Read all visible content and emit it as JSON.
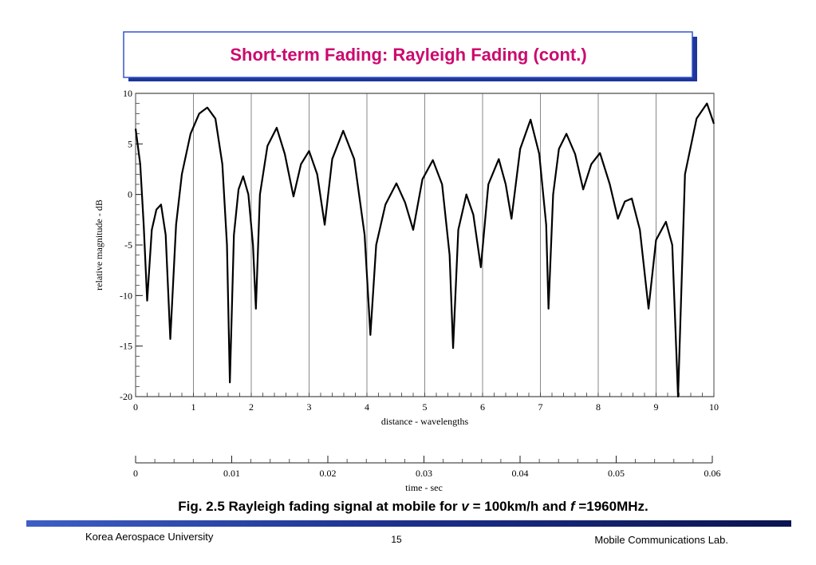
{
  "slide_title": "Short-term Fading: Rayleigh Fading (cont.)",
  "caption": [
    "Fig. 2.5 Rayleigh fading signal at mobile for ",
    "v",
    " = 100km/h and ",
    "f",
    " =1960MHz."
  ],
  "footer": {
    "left": "Korea Aerospace University",
    "page": "15",
    "right": "Mobile Communications Lab."
  },
  "chart_data": {
    "type": "line",
    "color": "#000000",
    "xlabel": "distance - wavelengths",
    "ylabel": "relative magnitude - dB",
    "x2label": "time - sec",
    "xlim": [
      0,
      10
    ],
    "ylim": [
      -20,
      10
    ],
    "xticks": [
      0,
      1,
      2,
      3,
      4,
      5,
      6,
      7,
      8,
      9,
      10
    ],
    "yticks": [
      -20,
      -15,
      -10,
      -5,
      0,
      5,
      10
    ],
    "x2lim": [
      0,
      0.06
    ],
    "x2ticks": [
      0,
      0.01,
      0.02,
      0.03,
      0.04,
      0.05,
      0.06
    ],
    "grid": "x",
    "x": [
      0,
      0.08,
      0.14,
      0.2,
      0.28,
      0.36,
      0.44,
      0.52,
      0.6,
      0.7,
      0.8,
      0.95,
      1.1,
      1.24,
      1.38,
      1.5,
      1.58,
      1.63,
      1.7,
      1.78,
      1.86,
      1.95,
      2.03,
      2.08,
      2.15,
      2.28,
      2.44,
      2.58,
      2.73,
      2.86,
      3.0,
      3.14,
      3.27,
      3.4,
      3.59,
      3.78,
      3.96,
      4.06,
      4.16,
      4.32,
      4.51,
      4.66,
      4.8,
      4.96,
      5.14,
      5.3,
      5.43,
      5.49,
      5.58,
      5.72,
      5.84,
      5.97,
      6.1,
      6.28,
      6.4,
      6.5,
      6.65,
      6.83,
      6.98,
      7.1,
      7.14,
      7.22,
      7.32,
      7.45,
      7.6,
      7.74,
      7.88,
      8.03,
      8.2,
      8.34,
      8.46,
      8.58,
      8.72,
      8.87,
      9.0,
      9.17,
      9.28,
      9.38,
      9.5,
      9.7,
      9.88,
      10
    ],
    "values": [
      6.5,
      3,
      -3,
      -10.5,
      -3.5,
      -1.5,
      -1,
      -4,
      -14.3,
      -3,
      2,
      6,
      8,
      8.6,
      7.5,
      3,
      -5,
      -18.6,
      -4,
      0.5,
      1.8,
      0,
      -5,
      -11.3,
      0,
      4.8,
      6.6,
      4,
      -0.2,
      3,
      4.3,
      2,
      -3,
      3.5,
      6.3,
      3.5,
      -4,
      -13.9,
      -5,
      -1,
      1.1,
      -0.8,
      -3.5,
      1.5,
      3.4,
      1,
      -6,
      -15.2,
      -3.5,
      0,
      -2,
      -7.2,
      1,
      3.5,
      1,
      -2.4,
      4.5,
      7.4,
      4,
      -3,
      -11.3,
      0,
      4.5,
      6,
      4,
      0.5,
      3,
      4.1,
      1,
      -2.4,
      -0.7,
      -0.4,
      -3.5,
      -11.3,
      -4.5,
      -2.7,
      -5,
      -20,
      2,
      7.5,
      9,
      7
    ]
  }
}
